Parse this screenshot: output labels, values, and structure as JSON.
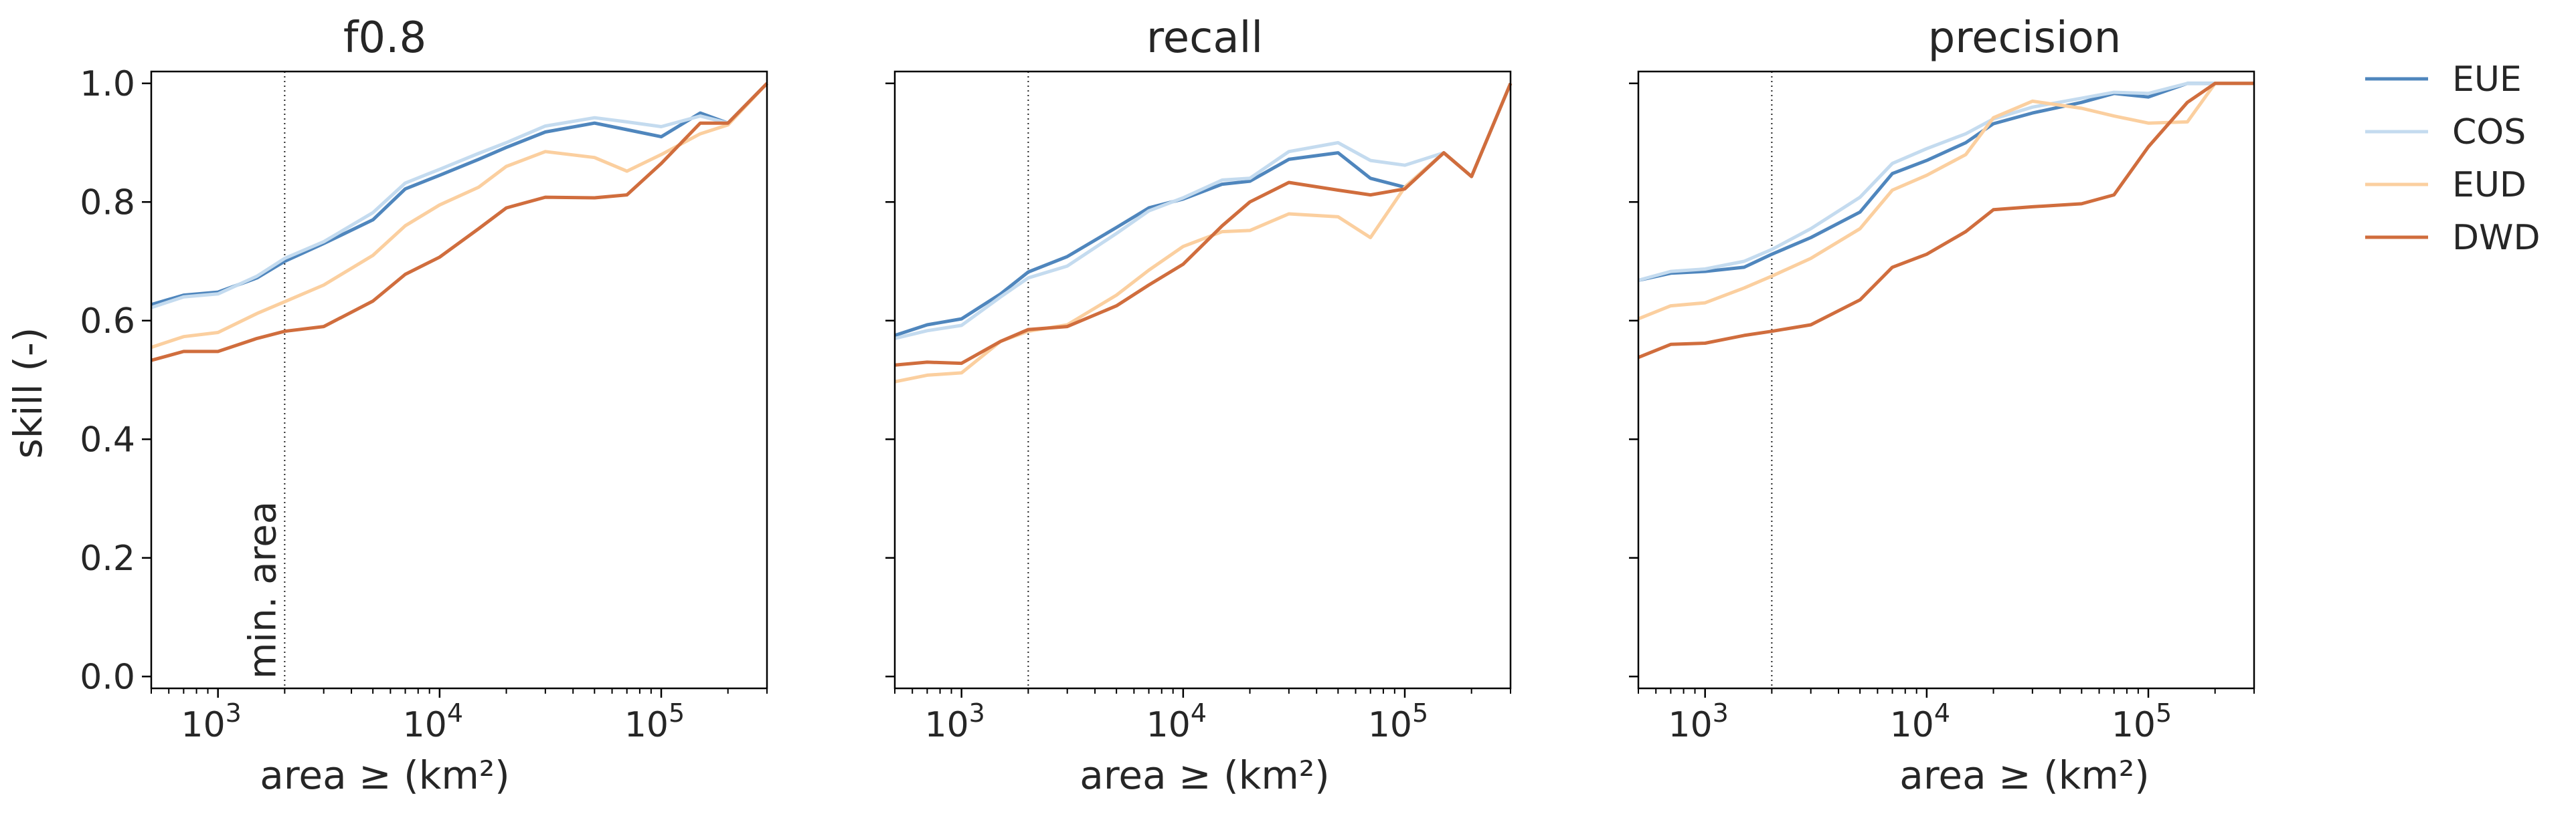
{
  "figure": {
    "ylabel": "skill (-)",
    "xlabel": "area ≥ (km²)",
    "annotation": "min. area",
    "y_ticks": [
      "0.0",
      "0.2",
      "0.4",
      "0.6",
      "0.8",
      "1.0"
    ],
    "x_ticks": [
      {
        "value": 1000,
        "base": "10",
        "exp": "3"
      },
      {
        "value": 10000,
        "base": "10",
        "exp": "4"
      },
      {
        "value": 100000,
        "base": "10",
        "exp": "5"
      }
    ],
    "legend": [
      {
        "name": "EUE",
        "color": "#4f86bd"
      },
      {
        "name": "COS",
        "color": "#c4dbef"
      },
      {
        "name": "EUD",
        "color": "#fbcf9f"
      },
      {
        "name": "DWD",
        "color": "#d06d3d"
      }
    ]
  },
  "chart_data": [
    {
      "type": "line",
      "title": "f0.8",
      "xlabel": "area ≥ (km²)",
      "ylabel": "skill (-)",
      "xscale": "log",
      "xlim": [
        500,
        300000
      ],
      "ylim": [
        -0.02,
        1.02
      ],
      "min_area_line": 2000,
      "x": [
        500,
        700,
        1000,
        1500,
        2000,
        3000,
        5000,
        7000,
        10000,
        15000,
        20000,
        30000,
        50000,
        70000,
        100000,
        150000,
        200000,
        300000
      ],
      "series": [
        {
          "name": "EUE",
          "color": "#4f86bd",
          "values": [
            0.627,
            0.643,
            0.648,
            0.672,
            0.7,
            0.73,
            0.77,
            0.822,
            0.845,
            0.872,
            0.892,
            0.918,
            0.933,
            0.922,
            0.91,
            0.95,
            0.933,
            1.0
          ]
        },
        {
          "name": "COS",
          "color": "#c4dbef",
          "values": [
            0.622,
            0.64,
            0.645,
            0.675,
            0.705,
            0.733,
            0.782,
            0.832,
            0.855,
            0.882,
            0.9,
            0.928,
            0.942,
            0.935,
            0.927,
            0.945,
            0.933,
            1.0
          ]
        },
        {
          "name": "EUD",
          "color": "#fbcf9f",
          "values": [
            0.555,
            0.573,
            0.58,
            0.612,
            0.632,
            0.66,
            0.71,
            0.76,
            0.795,
            0.825,
            0.86,
            0.885,
            0.875,
            0.852,
            0.88,
            0.915,
            0.93,
            1.0
          ]
        },
        {
          "name": "DWD",
          "color": "#d06d3d",
          "values": [
            0.533,
            0.548,
            0.548,
            0.57,
            0.582,
            0.59,
            0.633,
            0.678,
            0.707,
            0.755,
            0.79,
            0.808,
            0.807,
            0.812,
            0.865,
            0.933,
            0.933,
            1.0
          ]
        }
      ]
    },
    {
      "type": "line",
      "title": "recall",
      "xlabel": "area ≥ (km²)",
      "xscale": "log",
      "xlim": [
        500,
        300000
      ],
      "ylim": [
        -0.02,
        1.02
      ],
      "min_area_line": 2000,
      "x": [
        500,
        700,
        1000,
        1500,
        2000,
        3000,
        5000,
        7000,
        10000,
        15000,
        20000,
        30000,
        50000,
        70000,
        100000,
        150000,
        200000,
        300000
      ],
      "series": [
        {
          "name": "EUE",
          "color": "#4f86bd",
          "values": [
            0.575,
            0.593,
            0.603,
            0.645,
            0.682,
            0.708,
            0.757,
            0.79,
            0.805,
            0.83,
            0.835,
            0.872,
            0.883,
            0.84,
            0.825,
            0.883,
            0.843,
            1.0
          ]
        },
        {
          "name": "COS",
          "color": "#c4dbef",
          "values": [
            0.57,
            0.583,
            0.592,
            0.64,
            0.672,
            0.692,
            0.747,
            0.785,
            0.807,
            0.837,
            0.84,
            0.885,
            0.9,
            0.87,
            0.862,
            0.883,
            0.843,
            1.0
          ]
        },
        {
          "name": "EUD",
          "color": "#fbcf9f",
          "values": [
            0.497,
            0.508,
            0.512,
            0.565,
            0.582,
            0.593,
            0.643,
            0.685,
            0.725,
            0.75,
            0.752,
            0.78,
            0.775,
            0.74,
            0.825,
            0.883,
            0.843,
            1.0
          ]
        },
        {
          "name": "DWD",
          "color": "#d06d3d",
          "values": [
            0.525,
            0.53,
            0.528,
            0.565,
            0.585,
            0.59,
            0.625,
            0.66,
            0.695,
            0.76,
            0.8,
            0.833,
            0.82,
            0.812,
            0.822,
            0.883,
            0.843,
            1.0
          ]
        }
      ]
    },
    {
      "type": "line",
      "title": "precision",
      "xlabel": "area ≥ (km²)",
      "xscale": "log",
      "xlim": [
        500,
        300000
      ],
      "ylim": [
        -0.02,
        1.02
      ],
      "min_area_line": 2000,
      "x": [
        500,
        700,
        1000,
        1500,
        2000,
        3000,
        5000,
        7000,
        10000,
        15000,
        20000,
        30000,
        50000,
        70000,
        100000,
        150000,
        200000,
        300000
      ],
      "series": [
        {
          "name": "EUE",
          "color": "#4f86bd",
          "values": [
            0.668,
            0.68,
            0.683,
            0.69,
            0.712,
            0.74,
            0.783,
            0.848,
            0.87,
            0.9,
            0.932,
            0.95,
            0.968,
            0.983,
            0.977,
            1.0,
            1.0,
            1.0
          ]
        },
        {
          "name": "COS",
          "color": "#c4dbef",
          "values": [
            0.668,
            0.683,
            0.687,
            0.7,
            0.72,
            0.755,
            0.808,
            0.865,
            0.89,
            0.915,
            0.94,
            0.96,
            0.975,
            0.985,
            0.983,
            1.0,
            1.0,
            1.0
          ]
        },
        {
          "name": "EUD",
          "color": "#fbcf9f",
          "values": [
            0.603,
            0.625,
            0.63,
            0.655,
            0.675,
            0.705,
            0.755,
            0.82,
            0.845,
            0.88,
            0.942,
            0.97,
            0.958,
            0.945,
            0.933,
            0.935,
            1.0,
            1.0
          ]
        },
        {
          "name": "DWD",
          "color": "#d06d3d",
          "values": [
            0.538,
            0.56,
            0.562,
            0.575,
            0.582,
            0.593,
            0.635,
            0.69,
            0.712,
            0.75,
            0.787,
            0.792,
            0.797,
            0.812,
            0.893,
            0.968,
            1.0,
            1.0
          ]
        }
      ]
    }
  ]
}
